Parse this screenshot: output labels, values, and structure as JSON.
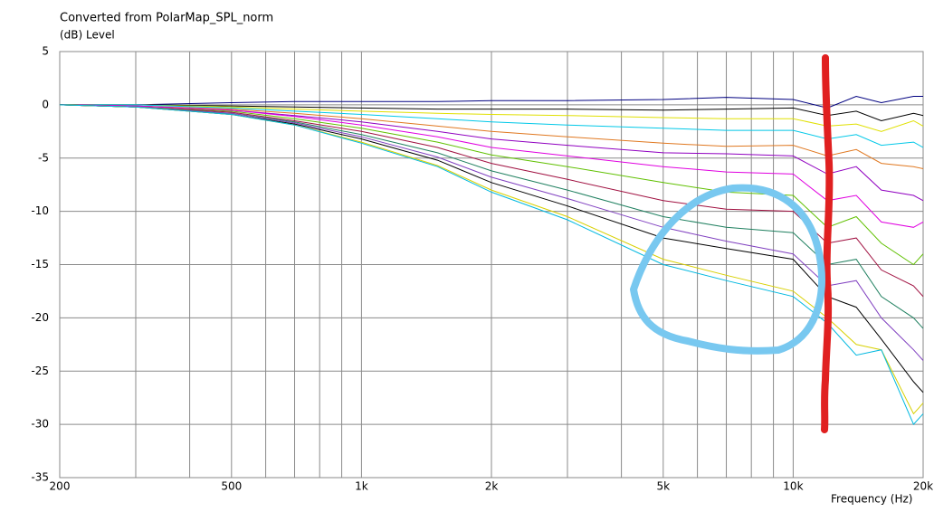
{
  "chart_data": {
    "type": "line",
    "title": "Converted from PolarMap_SPL_norm",
    "ylabel": "(dB)  Level",
    "xlabel": "Frequency  (Hz)",
    "xlog": true,
    "grid": true,
    "xlim": [
      200,
      20000
    ],
    "ylim": [
      -35,
      5
    ],
    "yticks": [
      5,
      0,
      -5,
      -10,
      -15,
      -20,
      -25,
      -30,
      -35
    ],
    "xticks": [
      200,
      500,
      {
        "value": 1000,
        "label": "1k"
      },
      {
        "value": 2000,
        "label": "2k"
      },
      {
        "value": 5000,
        "label": "5k"
      },
      {
        "value": 10000,
        "label": "10k"
      },
      {
        "value": 20000,
        "label": "20k"
      }
    ],
    "xminor": [
      300,
      400,
      600,
      700,
      800,
      900,
      3000,
      4000,
      6000,
      7000,
      8000,
      9000
    ],
    "x": [
      200,
      300,
      500,
      700,
      1000,
      1500,
      2000,
      3000,
      5000,
      7000,
      10000,
      12000,
      14000,
      16000,
      19000,
      20000
    ],
    "series": [
      {
        "color": "#000080",
        "values": [
          0,
          0,
          0.2,
          0.3,
          0.3,
          0.3,
          0.4,
          0.4,
          0.5,
          0.7,
          0.5,
          -0.3,
          0.8,
          0.2,
          0.8,
          0.8
        ]
      },
      {
        "color": "#000000",
        "values": [
          0,
          0,
          -0.1,
          -0.2,
          -0.3,
          -0.4,
          -0.4,
          -0.4,
          -0.5,
          -0.4,
          -0.3,
          -1,
          -0.6,
          -1.5,
          -0.8,
          -1
        ]
      },
      {
        "color": "#e0e000",
        "values": [
          0,
          0,
          -0.2,
          -0.4,
          -0.6,
          -0.8,
          -0.9,
          -1,
          -1.2,
          -1.3,
          -1.3,
          -2,
          -1.8,
          -2.5,
          -1.5,
          -2
        ]
      },
      {
        "color": "#00c8e8",
        "values": [
          0,
          0,
          -0.3,
          -0.6,
          -0.9,
          -1.3,
          -1.6,
          -1.9,
          -2.2,
          -2.4,
          -2.4,
          -3.2,
          -2.8,
          -3.8,
          -3.5,
          -4
        ]
      },
      {
        "color": "#e07820",
        "values": [
          0,
          -0.1,
          -0.4,
          -0.8,
          -1.3,
          -2,
          -2.5,
          -3,
          -3.6,
          -3.9,
          -3.8,
          -4.8,
          -4.2,
          -5.5,
          -5.8,
          -6
        ]
      },
      {
        "color": "#9000c0",
        "values": [
          0,
          -0.1,
          -0.5,
          -1,
          -1.6,
          -2.5,
          -3.2,
          -3.8,
          -4.5,
          -4.6,
          -4.8,
          -6.5,
          -5.8,
          -8,
          -8.5,
          -9
        ]
      },
      {
        "color": "#e000e0",
        "values": [
          0,
          -0.1,
          -0.5,
          -1.1,
          -1.9,
          -3,
          -4,
          -4.8,
          -5.8,
          -6.3,
          -6.5,
          -9,
          -8.5,
          -11,
          -11.5,
          -11
        ]
      },
      {
        "color": "#60c000",
        "values": [
          0,
          -0.2,
          -0.6,
          -1.3,
          -2.2,
          -3.5,
          -4.7,
          -5.8,
          -7.3,
          -8.2,
          -8.5,
          -11.5,
          -10.5,
          -13,
          -15,
          -14
        ]
      },
      {
        "color": "#a01040",
        "values": [
          0,
          -0.2,
          -0.7,
          -1.5,
          -2.5,
          -4,
          -5.5,
          -7,
          -9,
          -9.8,
          -10,
          -13,
          -12.5,
          -15.5,
          -17,
          -18
        ]
      },
      {
        "color": "#208060",
        "values": [
          0,
          -0.2,
          -0.8,
          -1.6,
          -2.8,
          -4.5,
          -6.2,
          -8,
          -10.5,
          -11.5,
          -12,
          -15,
          -14.5,
          -18,
          -20,
          -21
        ]
      },
      {
        "color": "#8040c0",
        "values": [
          0,
          -0.2,
          -0.8,
          -1.7,
          -3,
          -4.9,
          -6.8,
          -8.8,
          -11.5,
          -12.8,
          -14,
          -17,
          -16.5,
          -20,
          -23,
          -24
        ]
      },
      {
        "color": "#000000",
        "values": [
          0,
          -0.2,
          -0.9,
          -1.8,
          -3.2,
          -5.2,
          -7.3,
          -9.5,
          -12.5,
          -13.5,
          -14.5,
          -18,
          -19,
          -22,
          -26,
          -27
        ]
      },
      {
        "color": "#d8d000",
        "values": [
          0,
          -0.2,
          -0.9,
          -1.9,
          -3.5,
          -5.7,
          -8,
          -10.5,
          -14.5,
          -16,
          -17.5,
          -20,
          -22.5,
          -23,
          -29,
          -28
        ]
      },
      {
        "color": "#00b8e0",
        "values": [
          0,
          -0.2,
          -0.9,
          -1.9,
          -3.6,
          -5.8,
          -8.2,
          -10.8,
          -15,
          -16.5,
          -18,
          -20.5,
          -23.5,
          -23,
          -30,
          -29
        ]
      }
    ]
  }
}
